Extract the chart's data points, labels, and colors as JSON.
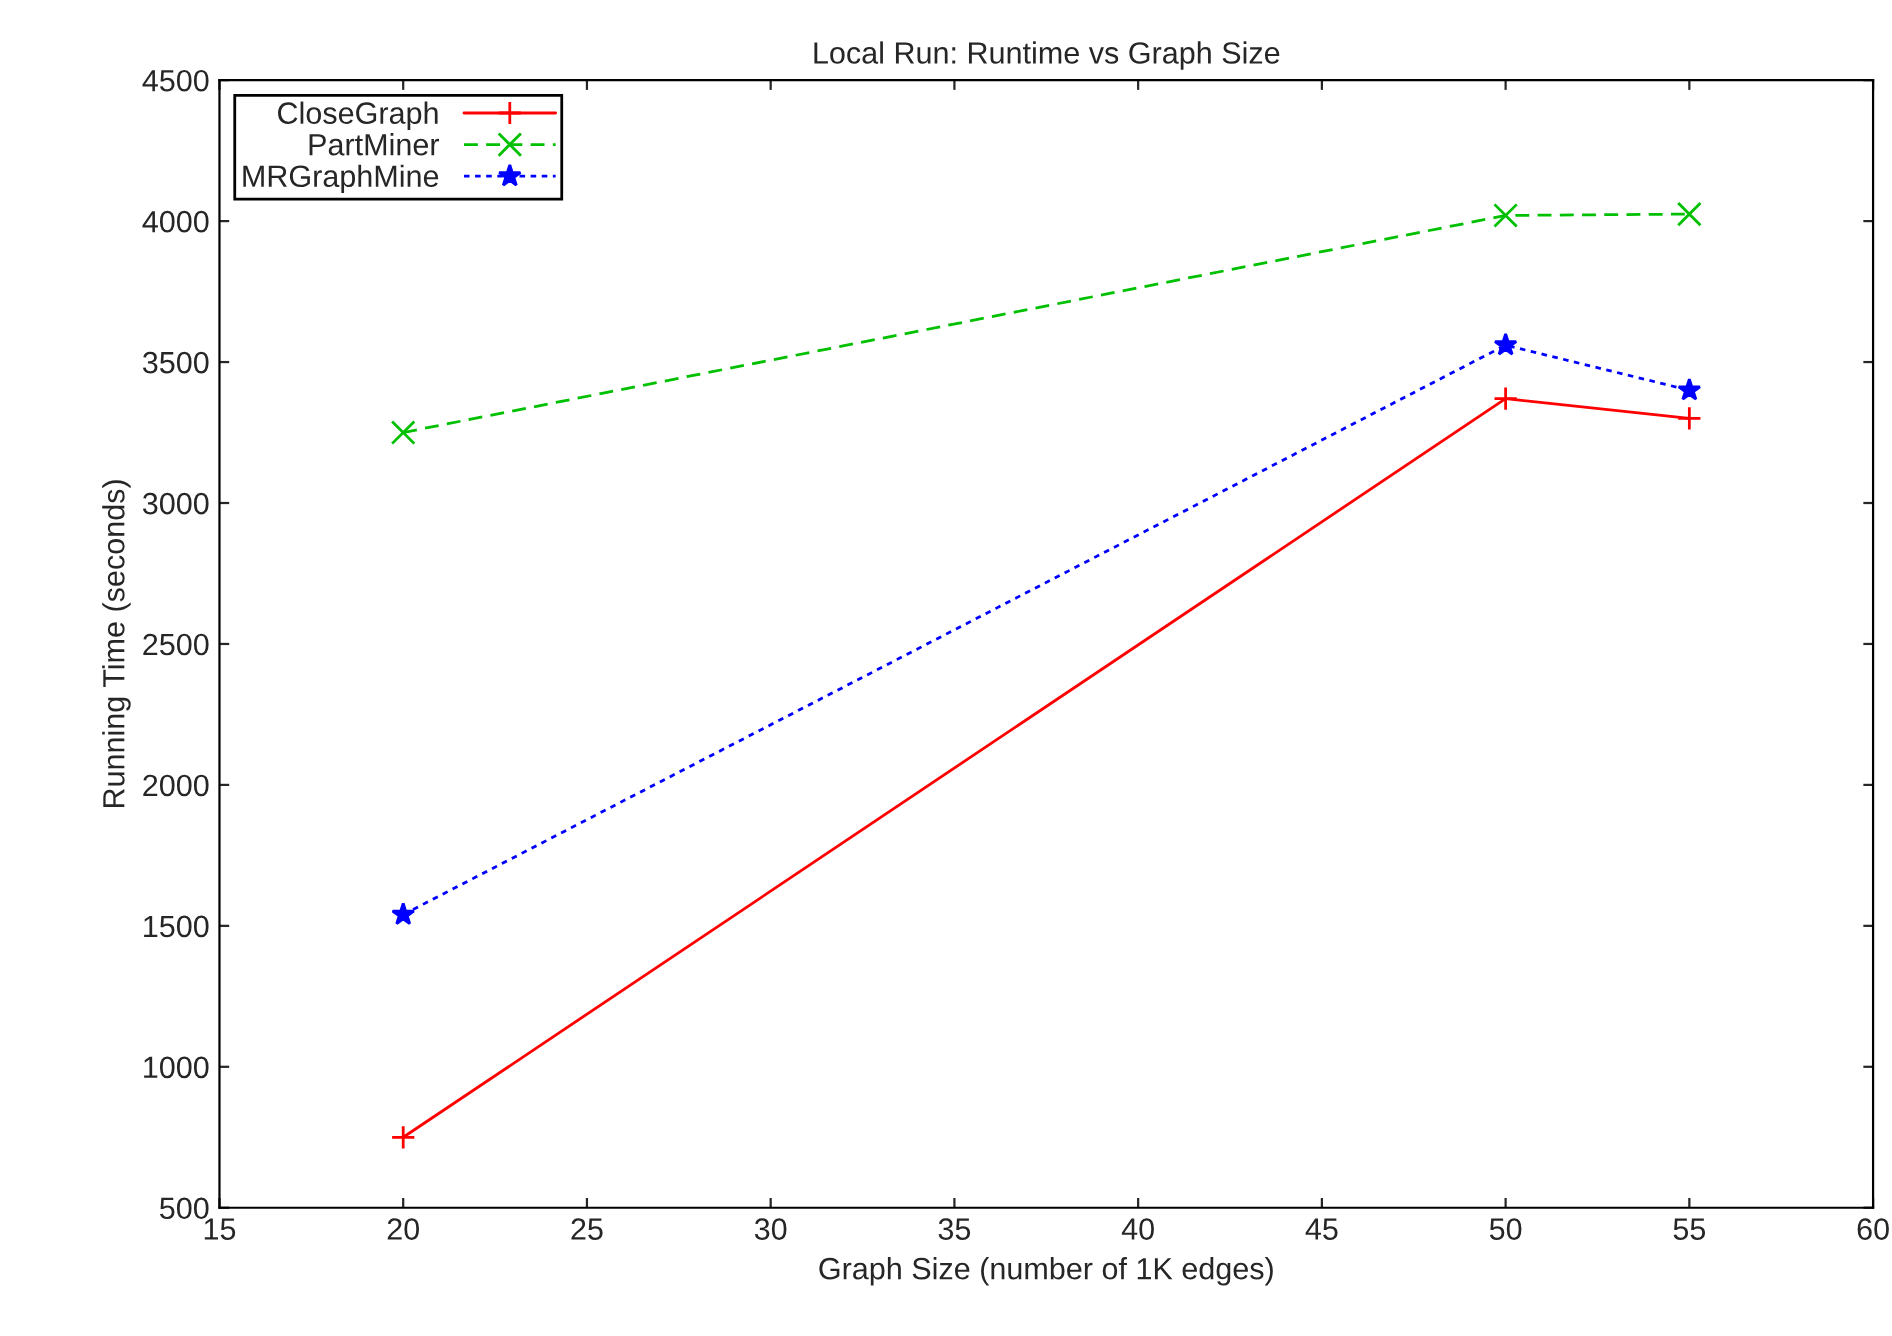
{
  "chart_data": {
    "type": "line",
    "title": "Local Run: Runtime vs Graph Size",
    "xlabel": "Graph Size (number of 1K edges)",
    "ylabel": "Running Time (seconds)",
    "x": [
      20,
      50,
      55
    ],
    "series": [
      {
        "name": "CloseGraph",
        "color": "#ff0000",
        "marker": "plus",
        "line_style": "solid",
        "values": [
          750,
          3370,
          3300
        ]
      },
      {
        "name": "PartMiner",
        "color": "#00c000",
        "marker": "cross",
        "line_style": "dashed",
        "values": [
          3250,
          4020,
          4025
        ]
      },
      {
        "name": "MRGraphMine",
        "color": "#0000ff",
        "marker": "star",
        "line_style": "dotted",
        "values": [
          1540,
          3560,
          3400
        ]
      }
    ],
    "xlim": [
      15,
      60
    ],
    "xticks": [
      15,
      20,
      25,
      30,
      35,
      40,
      45,
      50,
      55,
      60
    ],
    "ylim": [
      500,
      4500
    ],
    "yticks": [
      500,
      1000,
      1500,
      2000,
      2500,
      3000,
      3500,
      4000,
      4500
    ],
    "grid": false,
    "legend": "top left"
  }
}
